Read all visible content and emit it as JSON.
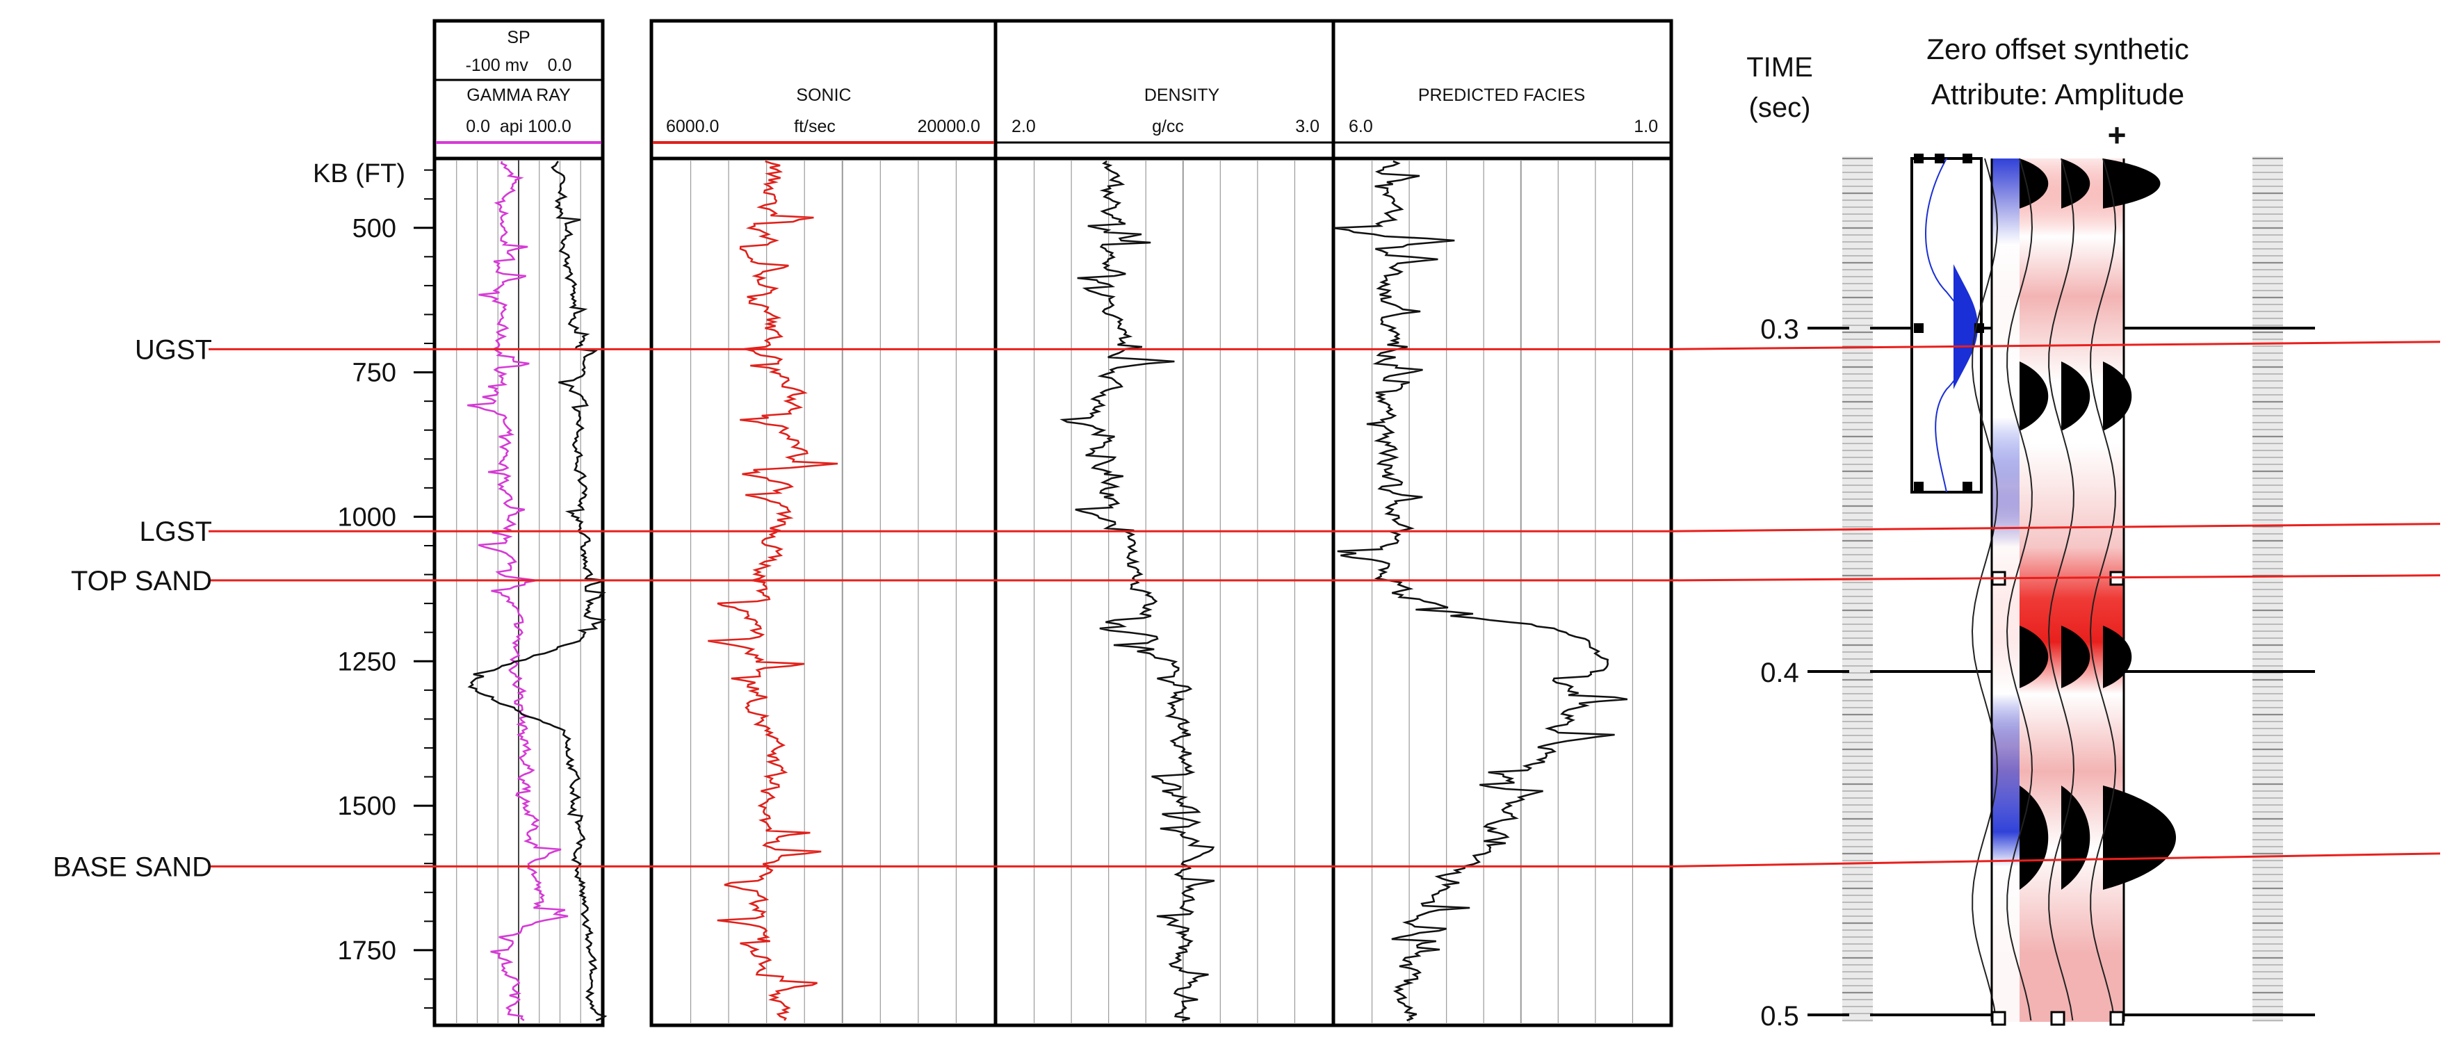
{
  "depth_axis": {
    "label": "KB (FT)",
    "ticks": [
      500,
      750,
      1000,
      1250,
      1500,
      1750
    ]
  },
  "tracks": {
    "sp_gr": {
      "sp_title": "SP",
      "sp_scale": "-100 mv    0.0",
      "gr_title": "GAMMA RAY",
      "gr_scale": "0.0  api 100.0"
    },
    "sonic": {
      "title": "SONIC",
      "min": "6000.0",
      "unit": "ft/sec",
      "max": "20000.0"
    },
    "density": {
      "title": "DENSITY",
      "min": "2.0",
      "unit": "g/cc",
      "max": "3.0"
    },
    "facies": {
      "title": "PREDICTED FACIES",
      "min": "6.0",
      "max": "1.0"
    }
  },
  "horizons": [
    {
      "name": "UGST",
      "depth_ft": 710,
      "time_s": 0.304
    },
    {
      "name": "LGST",
      "depth_ft": 1025,
      "time_s": 0.357
    },
    {
      "name": "TOP SAND",
      "depth_ft": 1110,
      "time_s": 0.372
    },
    {
      "name": "BASE SAND",
      "depth_ft": 1605,
      "time_s": 0.453
    }
  ],
  "time_axis": {
    "title_line1": "TIME",
    "title_line2": "(sec)",
    "ticks": [
      "0.3",
      "0.4",
      "0.5"
    ]
  },
  "synthetic": {
    "title_line1": "Zero offset synthetic",
    "title_line2": "Attribute: Amplitude",
    "polarity": "+"
  },
  "colors": {
    "horizon_line": "#e8201d",
    "gamma_ray": "#d63ad6",
    "sp": "#111111",
    "sonic": "#e0201a",
    "density": "#111111",
    "facies": "#111111",
    "wavelet_fill": "#1a2fd6",
    "positive_amplitude": "#000000",
    "negative_high": "#e8201d"
  }
}
